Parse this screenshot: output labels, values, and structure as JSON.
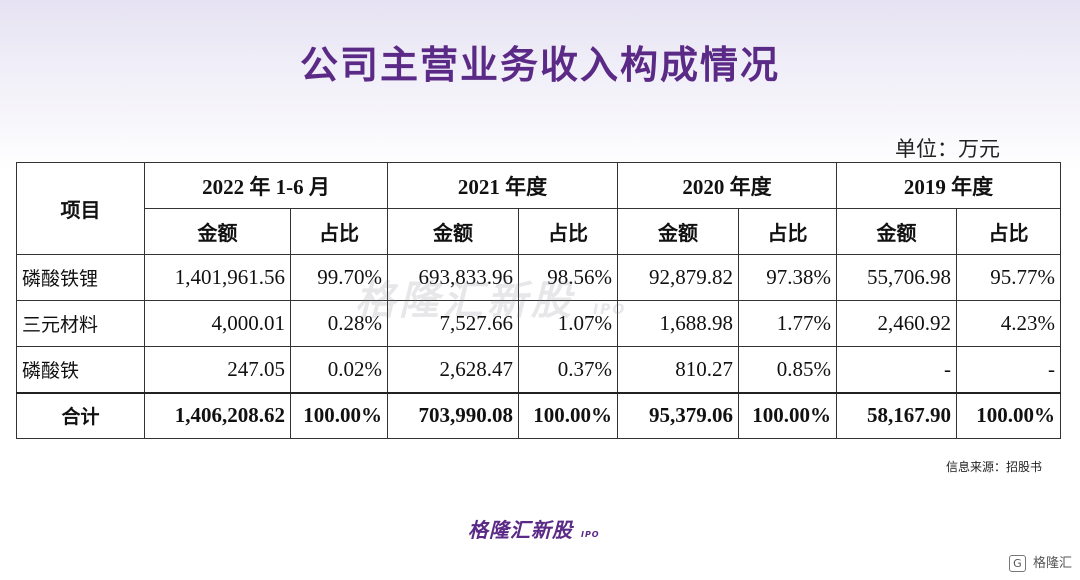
{
  "title": "公司主营业务收入构成情况",
  "unit": "单位：万元",
  "table": {
    "item_header": "项目",
    "periods": [
      "2022 年 1-6 月",
      "2021 年度",
      "2020 年度",
      "2019 年度"
    ],
    "sub_headers": {
      "amount": "金额",
      "share": "占比"
    },
    "rows": [
      {
        "name": "磷酸铁锂",
        "cells": [
          "1,401,961.56",
          "99.70%",
          "693,833.96",
          "98.56%",
          "92,879.82",
          "97.38%",
          "55,706.98",
          "95.77%"
        ]
      },
      {
        "name": "三元材料",
        "cells": [
          "4,000.01",
          "0.28%",
          "7,527.66",
          "1.07%",
          "1,688.98",
          "1.77%",
          "2,460.92",
          "4.23%"
        ]
      },
      {
        "name": "磷酸铁",
        "cells": [
          "247.05",
          "0.02%",
          "2,628.47",
          "0.37%",
          "810.27",
          "0.85%",
          "-",
          "-"
        ]
      }
    ],
    "total": {
      "name": "合计",
      "cells": [
        "1,406,208.62",
        "100.00%",
        "703,990.08",
        "100.00%",
        "95,379.06",
        "100.00%",
        "58,167.90",
        "100.00%"
      ]
    }
  },
  "watermark": {
    "text": "格隆汇新股",
    "sub": "IPO"
  },
  "source": "信息来源：招股书",
  "logo": {
    "text": "格隆汇新股",
    "sub": "IPO"
  },
  "corner_badge": {
    "icon": "G",
    "text": "格隆汇"
  },
  "colors": {
    "title": "#5b2a86",
    "border": "#333333"
  }
}
